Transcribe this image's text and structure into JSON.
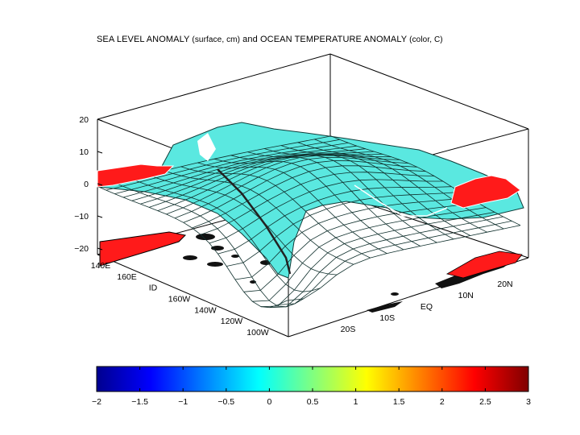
{
  "chart_data": {
    "type": "surface3d",
    "title": {
      "main1": "SEA LEVEL ANOMALY ",
      "paren1": "(surface, cm)",
      "main2": " and OCEAN TEMPERATURE ANOMALY ",
      "paren2": "(color, C)"
    },
    "z_axis": {
      "ticks": [
        "20",
        "10",
        "0",
        "−10",
        "−20"
      ],
      "range": [
        -20,
        20
      ]
    },
    "lon_axis": {
      "ticks": [
        "140E",
        "160E",
        "ID",
        "160W",
        "140W",
        "120W",
        "100W"
      ]
    },
    "lat_axis": {
      "ticks": [
        "20S",
        "10S",
        "EQ",
        "10N",
        "20N"
      ]
    },
    "colorbar": {
      "range": [
        -2,
        3
      ],
      "ticks": [
        "−2",
        "−1.5",
        "−1",
        "−0.5",
        "0",
        "0.5",
        "1",
        "1.5",
        "2",
        "2.5",
        "3"
      ],
      "colors": [
        "#00008f",
        "#0000ff",
        "#0080ff",
        "#00ffff",
        "#80ff80",
        "#ffff00",
        "#ff8000",
        "#ff0000",
        "#800000"
      ]
    },
    "surface_color": "#5ae8e0",
    "anomaly_color": "#ff1a1a"
  }
}
